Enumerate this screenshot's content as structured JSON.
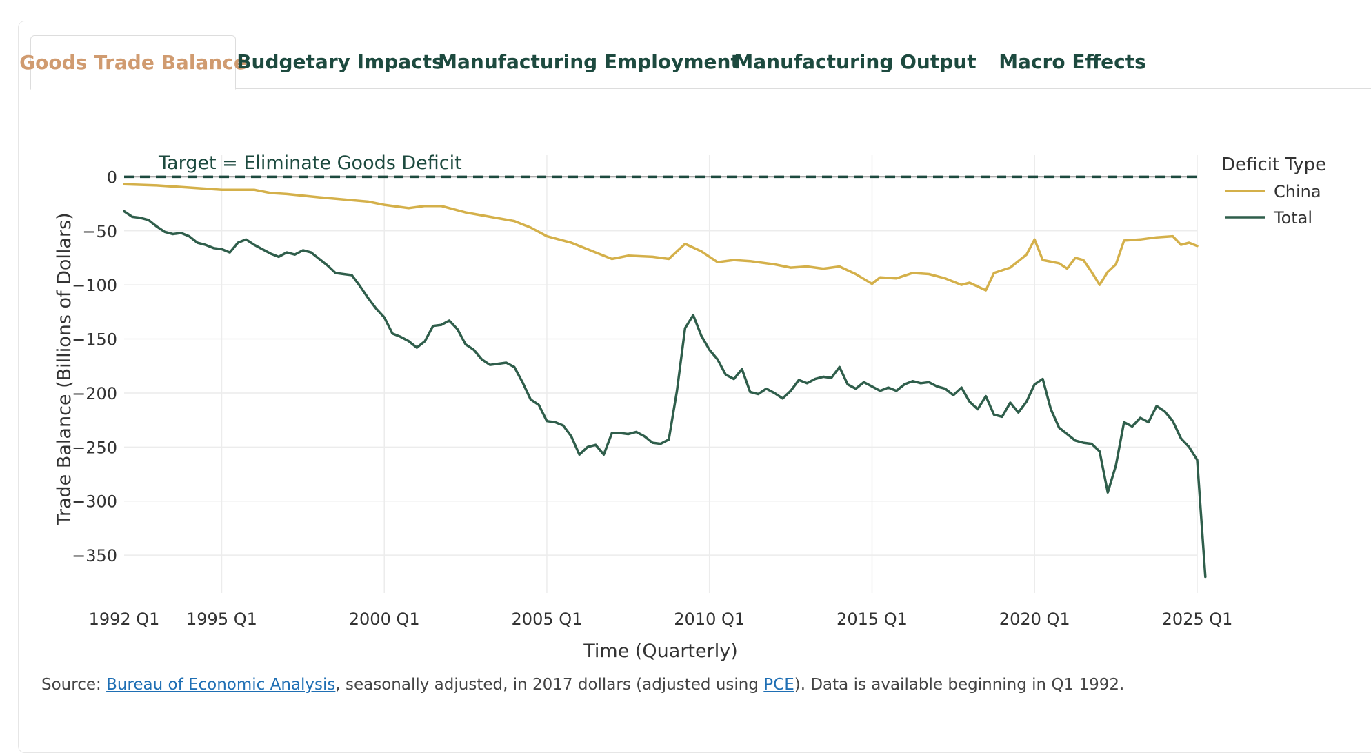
{
  "tabs": [
    {
      "label": "Goods Trade Balance",
      "active": true
    },
    {
      "label": "Budgetary Impacts",
      "active": false
    },
    {
      "label": "Manufacturing Employment",
      "active": false
    },
    {
      "label": "Manufacturing Output",
      "active": false
    },
    {
      "label": "Macro Effects",
      "active": false
    }
  ],
  "colors": {
    "tab_active": "#d09b70",
    "tab_text": "#1d4a3f",
    "china": "#d4b04a",
    "total": "#2f5e4b",
    "target": "#1d4a3f",
    "grid": "#ececec",
    "link": "#1f6fb4"
  },
  "source": {
    "prefix": "Source: ",
    "link1": "Bureau of Economic Analysis",
    "middle": ", seasonally adjusted, in 2017 dollars (adjusted using ",
    "link2": "PCE",
    "suffix": "). Data is available beginning in Q1 1992."
  },
  "chart_data": {
    "type": "line",
    "xlabel": "Time (Quarterly)",
    "ylabel": "Trade Balance (Billions of Dollars)",
    "xlim": [
      1992.0,
      2025.0
    ],
    "ylim": [
      -385,
      20
    ],
    "yticks": [
      0,
      -50,
      -100,
      -150,
      -200,
      -250,
      -300,
      -350
    ],
    "xticks": [
      {
        "x": 1992.0,
        "label": "1992 Q1"
      },
      {
        "x": 1995.0,
        "label": "1995 Q1"
      },
      {
        "x": 2000.0,
        "label": "2000 Q1"
      },
      {
        "x": 2005.0,
        "label": "2005 Q1"
      },
      {
        "x": 2010.0,
        "label": "2010 Q1"
      },
      {
        "x": 2015.0,
        "label": "2015 Q1"
      },
      {
        "x": 2020.0,
        "label": "2020 Q1"
      },
      {
        "x": 2025.0,
        "label": "2025 Q1"
      }
    ],
    "grid": true,
    "legend": {
      "title": "Deficit Type",
      "position": "top-right"
    },
    "annotation": {
      "text": "Target = Eliminate Goods Deficit",
      "y": 0
    },
    "series": [
      {
        "name": "China",
        "points": [
          [
            1992.0,
            -7
          ],
          [
            1993.0,
            -8
          ],
          [
            1994.0,
            -10
          ],
          [
            1995.0,
            -12
          ],
          [
            1996.0,
            -12
          ],
          [
            1996.5,
            -15
          ],
          [
            1997.0,
            -16
          ],
          [
            1998.0,
            -19
          ],
          [
            1998.75,
            -21
          ],
          [
            1999.5,
            -23
          ],
          [
            2000.0,
            -26
          ],
          [
            2000.75,
            -29
          ],
          [
            2001.25,
            -27
          ],
          [
            2001.75,
            -27
          ],
          [
            2002.5,
            -33
          ],
          [
            2003.25,
            -37
          ],
          [
            2004.0,
            -41
          ],
          [
            2004.5,
            -47
          ],
          [
            2005.0,
            -55
          ],
          [
            2005.75,
            -61
          ],
          [
            2006.5,
            -70
          ],
          [
            2007.0,
            -76
          ],
          [
            2007.5,
            -73
          ],
          [
            2008.25,
            -74
          ],
          [
            2008.75,
            -76
          ],
          [
            2009.25,
            -62
          ],
          [
            2009.75,
            -69
          ],
          [
            2010.25,
            -79
          ],
          [
            2010.75,
            -77
          ],
          [
            2011.25,
            -78
          ],
          [
            2012.0,
            -81
          ],
          [
            2012.5,
            -84
          ],
          [
            2013.0,
            -83
          ],
          [
            2013.5,
            -85
          ],
          [
            2014.0,
            -83
          ],
          [
            2014.5,
            -90
          ],
          [
            2015.0,
            -99
          ],
          [
            2015.25,
            -93
          ],
          [
            2015.75,
            -94
          ],
          [
            2016.25,
            -89
          ],
          [
            2016.75,
            -90
          ],
          [
            2017.25,
            -94
          ],
          [
            2017.75,
            -100
          ],
          [
            2018.0,
            -98
          ],
          [
            2018.5,
            -105
          ],
          [
            2018.75,
            -89
          ],
          [
            2019.25,
            -84
          ],
          [
            2019.75,
            -72
          ],
          [
            2020.0,
            -58
          ],
          [
            2020.25,
            -77
          ],
          [
            2020.75,
            -80
          ],
          [
            2021.0,
            -85
          ],
          [
            2021.25,
            -75
          ],
          [
            2021.5,
            -77
          ],
          [
            2021.75,
            -88
          ],
          [
            2022.0,
            -100
          ],
          [
            2022.25,
            -88
          ],
          [
            2022.5,
            -81
          ],
          [
            2022.75,
            -59
          ],
          [
            2023.25,
            -58
          ],
          [
            2023.75,
            -56
          ],
          [
            2024.25,
            -55
          ],
          [
            2024.5,
            -63
          ],
          [
            2024.75,
            -61
          ],
          [
            2025.0,
            -64
          ]
        ]
      },
      {
        "name": "Total",
        "points": [
          [
            1992.0,
            -32
          ],
          [
            1992.25,
            -37
          ],
          [
            1992.5,
            -38
          ],
          [
            1992.75,
            -40
          ],
          [
            1993.0,
            -46
          ],
          [
            1993.25,
            -51
          ],
          [
            1993.5,
            -53
          ],
          [
            1993.75,
            -52
          ],
          [
            1994.0,
            -55
          ],
          [
            1994.25,
            -61
          ],
          [
            1994.5,
            -63
          ],
          [
            1994.75,
            -66
          ],
          [
            1995.0,
            -67
          ],
          [
            1995.25,
            -70
          ],
          [
            1995.5,
            -61
          ],
          [
            1995.75,
            -58
          ],
          [
            1996.0,
            -63
          ],
          [
            1996.25,
            -67
          ],
          [
            1996.5,
            -71
          ],
          [
            1996.75,
            -74
          ],
          [
            1997.0,
            -70
          ],
          [
            1997.25,
            -72
          ],
          [
            1997.5,
            -68
          ],
          [
            1997.75,
            -70
          ],
          [
            1998.0,
            -76
          ],
          [
            1998.25,
            -82
          ],
          [
            1998.5,
            -89
          ],
          [
            1998.75,
            -90
          ],
          [
            1999.0,
            -91
          ],
          [
            1999.25,
            -101
          ],
          [
            1999.5,
            -112
          ],
          [
            1999.75,
            -122
          ],
          [
            2000.0,
            -130
          ],
          [
            2000.25,
            -145
          ],
          [
            2000.5,
            -148
          ],
          [
            2000.75,
            -152
          ],
          [
            2001.0,
            -158
          ],
          [
            2001.25,
            -152
          ],
          [
            2001.5,
            -138
          ],
          [
            2001.75,
            -137
          ],
          [
            2002.0,
            -133
          ],
          [
            2002.25,
            -141
          ],
          [
            2002.5,
            -155
          ],
          [
            2002.75,
            -160
          ],
          [
            2003.0,
            -169
          ],
          [
            2003.25,
            -174
          ],
          [
            2003.5,
            -173
          ],
          [
            2003.75,
            -172
          ],
          [
            2004.0,
            -176
          ],
          [
            2004.25,
            -190
          ],
          [
            2004.5,
            -206
          ],
          [
            2004.75,
            -211
          ],
          [
            2005.0,
            -226
          ],
          [
            2005.25,
            -227
          ],
          [
            2005.5,
            -230
          ],
          [
            2005.75,
            -240
          ],
          [
            2006.0,
            -257
          ],
          [
            2006.25,
            -250
          ],
          [
            2006.5,
            -248
          ],
          [
            2006.75,
            -257
          ],
          [
            2007.0,
            -237
          ],
          [
            2007.25,
            -237
          ],
          [
            2007.5,
            -238
          ],
          [
            2007.75,
            -236
          ],
          [
            2008.0,
            -240
          ],
          [
            2008.25,
            -246
          ],
          [
            2008.5,
            -247
          ],
          [
            2008.75,
            -243
          ],
          [
            2009.0,
            -198
          ],
          [
            2009.25,
            -140
          ],
          [
            2009.5,
            -128
          ],
          [
            2009.75,
            -147
          ],
          [
            2010.0,
            -160
          ],
          [
            2010.25,
            -169
          ],
          [
            2010.5,
            -183
          ],
          [
            2010.75,
            -187
          ],
          [
            2011.0,
            -178
          ],
          [
            2011.25,
            -199
          ],
          [
            2011.5,
            -201
          ],
          [
            2011.75,
            -196
          ],
          [
            2012.0,
            -200
          ],
          [
            2012.25,
            -205
          ],
          [
            2012.5,
            -198
          ],
          [
            2012.75,
            -188
          ],
          [
            2013.0,
            -191
          ],
          [
            2013.25,
            -187
          ],
          [
            2013.5,
            -185
          ],
          [
            2013.75,
            -186
          ],
          [
            2014.0,
            -176
          ],
          [
            2014.25,
            -192
          ],
          [
            2014.5,
            -196
          ],
          [
            2014.75,
            -190
          ],
          [
            2015.0,
            -194
          ],
          [
            2015.25,
            -198
          ],
          [
            2015.5,
            -195
          ],
          [
            2015.75,
            -198
          ],
          [
            2016.0,
            -192
          ],
          [
            2016.25,
            -189
          ],
          [
            2016.5,
            -191
          ],
          [
            2016.75,
            -190
          ],
          [
            2017.0,
            -194
          ],
          [
            2017.25,
            -196
          ],
          [
            2017.5,
            -202
          ],
          [
            2017.75,
            -195
          ],
          [
            2018.0,
            -208
          ],
          [
            2018.25,
            -215
          ],
          [
            2018.5,
            -203
          ],
          [
            2018.75,
            -220
          ],
          [
            2019.0,
            -222
          ],
          [
            2019.25,
            -209
          ],
          [
            2019.5,
            -218
          ],
          [
            2019.75,
            -208
          ],
          [
            2020.0,
            -192
          ],
          [
            2020.25,
            -187
          ],
          [
            2020.5,
            -215
          ],
          [
            2020.75,
            -232
          ],
          [
            2021.0,
            -238
          ],
          [
            2021.25,
            -244
          ],
          [
            2021.5,
            -246
          ],
          [
            2021.75,
            -247
          ],
          [
            2022.0,
            -254
          ],
          [
            2022.25,
            -292
          ],
          [
            2022.5,
            -267
          ],
          [
            2022.75,
            -227
          ],
          [
            2023.0,
            -231
          ],
          [
            2023.25,
            -223
          ],
          [
            2023.5,
            -227
          ],
          [
            2023.75,
            -212
          ],
          [
            2024.0,
            -217
          ],
          [
            2024.25,
            -226
          ],
          [
            2024.5,
            -242
          ],
          [
            2024.75,
            -250
          ],
          [
            2025.0,
            -262
          ],
          [
            2025.25,
            -370
          ]
        ]
      }
    ]
  }
}
